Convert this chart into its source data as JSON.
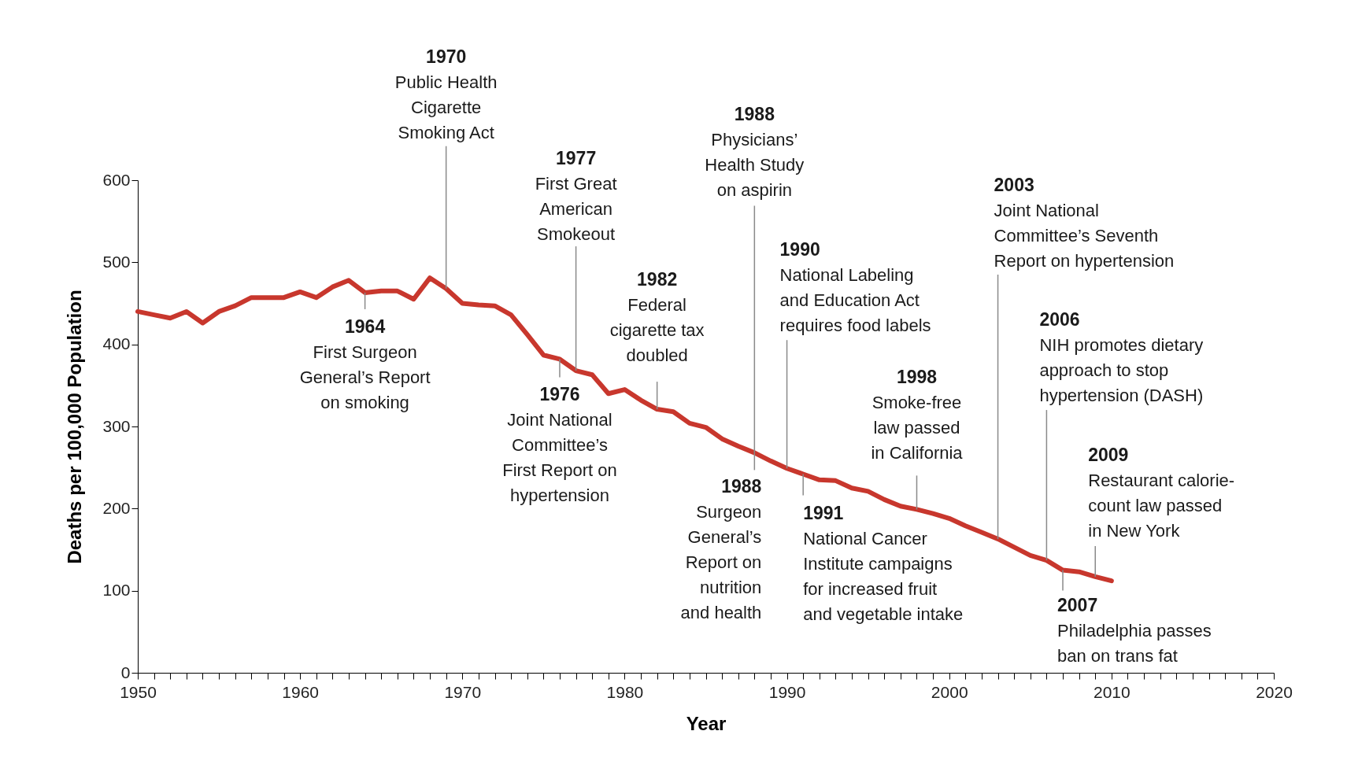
{
  "chart_data": {
    "type": "line",
    "xlabel": "Year",
    "ylabel": "Deaths per 100,000 Population",
    "x": [
      1950,
      1951,
      1952,
      1953,
      1954,
      1955,
      1956,
      1957,
      1958,
      1959,
      1960,
      1961,
      1962,
      1963,
      1964,
      1965,
      1966,
      1967,
      1968,
      1969,
      1970,
      1971,
      1972,
      1973,
      1974,
      1975,
      1976,
      1977,
      1978,
      1979,
      1980,
      1981,
      1982,
      1983,
      1984,
      1985,
      1986,
      1987,
      1988,
      1989,
      1990,
      1991,
      1992,
      1993,
      1994,
      1995,
      1996,
      1997,
      1998,
      1999,
      2000,
      2001,
      2002,
      2003,
      2004,
      2005,
      2006,
      2007,
      2008,
      2009,
      2010
    ],
    "series": [
      {
        "color": "#c8372d",
        "values": [
          440,
          436,
          432,
          440,
          426,
          440,
          447,
          457,
          457,
          457,
          464,
          457,
          470,
          478,
          463,
          465,
          465,
          455,
          481,
          468,
          450,
          448,
          447,
          436,
          412,
          387,
          382,
          368,
          363,
          340,
          345,
          332,
          321,
          318,
          304,
          299,
          285,
          276,
          268,
          258,
          249,
          242,
          235,
          234,
          225,
          221,
          211,
          203,
          199,
          194,
          188,
          179,
          171,
          163,
          153,
          143,
          137,
          125,
          123,
          117,
          112
        ]
      }
    ],
    "xlim": [
      1950,
      2020
    ],
    "ylim": [
      0,
      600
    ],
    "xticks": [
      1950,
      {
        "value": 1951,
        "label": null
      },
      {
        "value": 1952,
        "label": null
      },
      {
        "value": 1953,
        "label": null
      },
      {
        "value": 1954,
        "label": null
      },
      {
        "value": 1955,
        "label": null
      },
      {
        "value": 1956,
        "label": null
      },
      {
        "value": 1957,
        "label": null
      },
      {
        "value": 1958,
        "label": null
      },
      {
        "value": 1959,
        "label": null
      },
      1960,
      {
        "value": 1961,
        "label": null
      },
      {
        "value": 1962,
        "label": null
      },
      {
        "value": 1963,
        "label": null
      },
      {
        "value": 1964,
        "label": null
      },
      {
        "value": 1965,
        "label": null
      },
      {
        "value": 1966,
        "label": null
      },
      {
        "value": 1967,
        "label": null
      },
      {
        "value": 1968,
        "label": null
      },
      {
        "value": 1969,
        "label": null
      },
      1970,
      {
        "value": 1971,
        "label": null
      },
      {
        "value": 1972,
        "label": null
      },
      {
        "value": 1973,
        "label": null
      },
      {
        "value": 1974,
        "label": null
      },
      {
        "value": 1975,
        "label": null
      },
      {
        "value": 1976,
        "label": null
      },
      {
        "value": 1977,
        "label": null
      },
      {
        "value": 1978,
        "label": null
      },
      {
        "value": 1979,
        "label": null
      },
      1980,
      {
        "value": 1981,
        "label": null
      },
      {
        "value": 1982,
        "label": null
      },
      {
        "value": 1983,
        "label": null
      },
      {
        "value": 1984,
        "label": null
      },
      {
        "value": 1985,
        "label": null
      },
      {
        "value": 1986,
        "label": null
      },
      {
        "value": 1987,
        "label": null
      },
      {
        "value": 1988,
        "label": null
      },
      {
        "value": 1989,
        "label": null
      },
      1990,
      {
        "value": 1991,
        "label": null
      },
      {
        "value": 1992,
        "label": null
      },
      {
        "value": 1993,
        "label": null
      },
      {
        "value": 1994,
        "label": null
      },
      {
        "value": 1995,
        "label": null
      },
      {
        "value": 1996,
        "label": null
      },
      {
        "value": 1997,
        "label": null
      },
      {
        "value": 1998,
        "label": null
      },
      {
        "value": 1999,
        "label": null
      },
      2000,
      {
        "value": 2001,
        "label": null
      },
      {
        "value": 2002,
        "label": null
      },
      {
        "value": 2003,
        "label": null
      },
      {
        "value": 2004,
        "label": null
      },
      {
        "value": 2005,
        "label": null
      },
      {
        "value": 2006,
        "label": null
      },
      {
        "value": 2007,
        "label": null
      },
      {
        "value": 2008,
        "label": null
      },
      {
        "value": 2009,
        "label": null
      },
      2010,
      {
        "value": 2011,
        "label": null
      },
      {
        "value": 2012,
        "label": null
      },
      {
        "value": 2013,
        "label": null
      },
      {
        "value": 2014,
        "label": null
      },
      {
        "value": 2015,
        "label": null
      },
      {
        "value": 2016,
        "label": null
      },
      {
        "value": 2017,
        "label": null
      },
      {
        "value": 2018,
        "label": null
      },
      {
        "value": 2019,
        "label": null
      },
      2020
    ],
    "yticks": [
      0,
      100,
      200,
      300,
      400,
      500,
      600
    ],
    "grid": false,
    "marker": "none",
    "line_style": "solid",
    "annotations": [
      {
        "text": "1964\nFirst Surgeon\nGeneral’s Report\non smoking",
        "x": 1964,
        "y": 463
      },
      {
        "text": "1970\nPublic Health\nCigarette\nSmoking Act",
        "x": 1969,
        "y": 468
      },
      {
        "text": "1976\nJoint National\nCommittee’s\nFirst Report on\nhypertension",
        "x": 1976,
        "y": 382
      },
      {
        "text": "1977\nFirst Great\nAmerican\nSmokeout",
        "x": 1977,
        "y": 368
      },
      {
        "text": "1982\nFederal\ncigarette tax\ndoubled",
        "x": 1982,
        "y": 321
      },
      {
        "text": "1988\nPhysicians’\nHealth Study\non aspirin",
        "x": 1988,
        "y": 268
      },
      {
        "text": "1988\nSurgeon\nGeneral’s\nReport on\nnutrition\nand health",
        "x": 1988,
        "y": 268
      },
      {
        "text": "1990\nNational Labeling\nand Education Act\nrequires food labels",
        "x": 1990,
        "y": 249
      },
      {
        "text": "1991\nNational Cancer\nInstitute campaigns\nfor increased fruit\nand vegetable intake",
        "x": 1991,
        "y": 242
      },
      {
        "text": "1998\nSmoke-free\nlaw passed\nin California",
        "x": 1998,
        "y": 199
      },
      {
        "text": "2003\nJoint National\nCommittee’s Seventh\nReport on hypertension",
        "x": 2003,
        "y": 163
      },
      {
        "text": "2006\nNIH promotes dietary\napproach to stop\nhypertension (DASH)",
        "x": 2006,
        "y": 137
      },
      {
        "text": "2007\nPhiladelphia passes\nban on trans fat",
        "x": 2007,
        "y": 125
      },
      {
        "text": "2009\nRestaurant calorie-\ncount law passed\nin New York",
        "x": 2009,
        "y": 117
      }
    ]
  }
}
